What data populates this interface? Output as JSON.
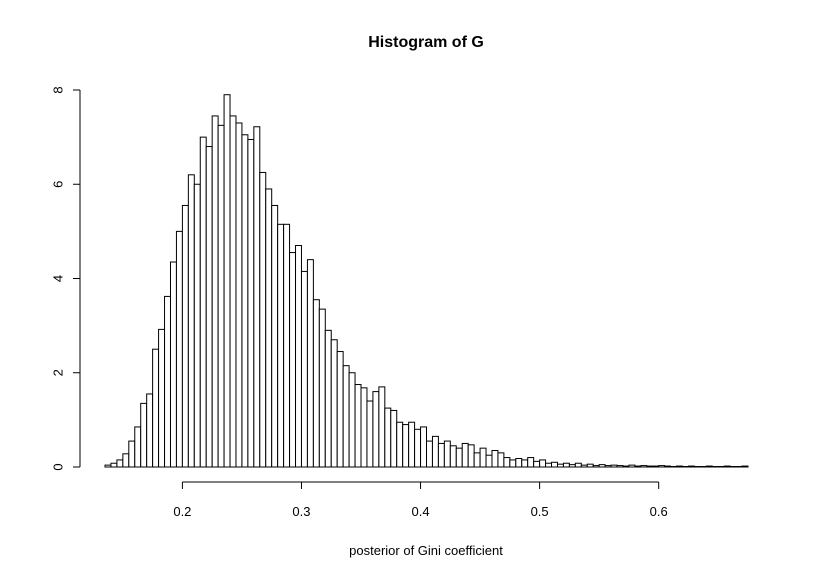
{
  "chart_data": {
    "type": "bar",
    "title": "Histogram of G",
    "xlabel": "posterior of Gini coefficient",
    "ylabel": "",
    "xlim": [
      0.135,
      0.675
    ],
    "ylim": [
      0,
      8
    ],
    "bin_width": 0.005,
    "x_start": 0.135,
    "x_ticks": [
      {
        "value": 0.2,
        "label": "0.2"
      },
      {
        "value": 0.3,
        "label": "0.3"
      },
      {
        "value": 0.4,
        "label": "0.4"
      },
      {
        "value": 0.5,
        "label": "0.5"
      },
      {
        "value": 0.6,
        "label": "0.6"
      }
    ],
    "y_ticks": [
      {
        "value": 0,
        "label": "0"
      },
      {
        "value": 2,
        "label": "2"
      },
      {
        "value": 4,
        "label": "4"
      },
      {
        "value": 6,
        "label": "6"
      },
      {
        "value": 8,
        "label": "8"
      }
    ],
    "values": [
      0.04,
      0.08,
      0.15,
      0.28,
      0.55,
      0.85,
      1.35,
      1.55,
      2.5,
      2.92,
      3.62,
      4.35,
      5.0,
      5.55,
      6.2,
      6.0,
      7.0,
      6.8,
      7.45,
      7.25,
      7.9,
      7.45,
      7.3,
      7.05,
      6.95,
      7.22,
      6.25,
      5.9,
      5.55,
      5.15,
      5.15,
      4.55,
      4.7,
      4.15,
      4.4,
      3.55,
      3.35,
      2.9,
      2.7,
      2.45,
      2.15,
      2.0,
      1.75,
      1.68,
      1.4,
      1.6,
      1.7,
      1.25,
      1.2,
      0.95,
      0.9,
      0.95,
      0.8,
      0.85,
      0.55,
      0.65,
      0.5,
      0.55,
      0.45,
      0.4,
      0.5,
      0.47,
      0.3,
      0.4,
      0.25,
      0.35,
      0.3,
      0.2,
      0.15,
      0.18,
      0.15,
      0.2,
      0.12,
      0.15,
      0.08,
      0.1,
      0.06,
      0.08,
      0.05,
      0.08,
      0.04,
      0.06,
      0.03,
      0.05,
      0.03,
      0.04,
      0.03,
      0.02,
      0.04,
      0.02,
      0.03,
      0.02,
      0.02,
      0.03,
      0.02,
      0.01,
      0.02,
      0.01,
      0.02,
      0.01,
      0.01,
      0.02,
      0.01,
      0.01,
      0.02,
      0.01,
      0.01,
      0.02
    ],
    "bar_fill": "#ffffff",
    "bar_stroke": "#000000",
    "grid": false,
    "legend": "none"
  }
}
